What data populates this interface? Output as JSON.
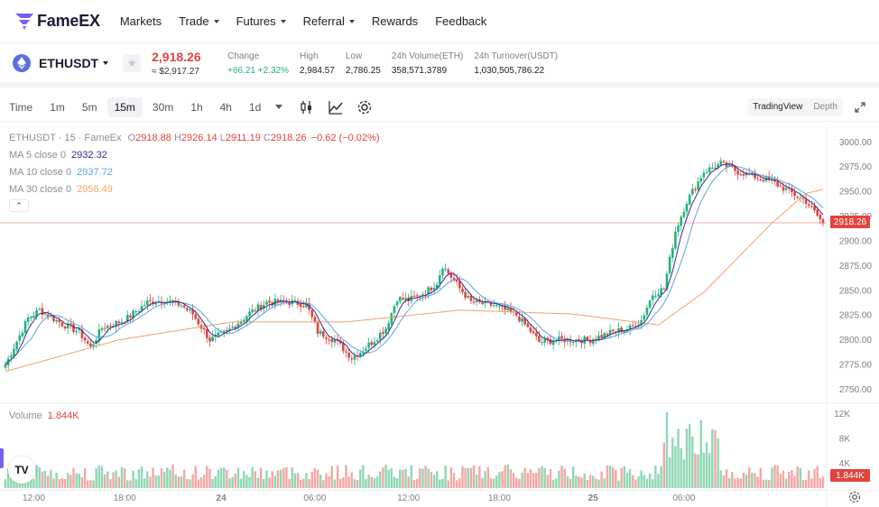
{
  "nav": {
    "brand": "FameEX",
    "items": [
      {
        "label": "Markets",
        "dropdown": false
      },
      {
        "label": "Trade",
        "dropdown": true
      },
      {
        "label": "Futures",
        "dropdown": true
      },
      {
        "label": "Referral",
        "dropdown": true
      },
      {
        "label": "Rewards",
        "dropdown": false
      },
      {
        "label": "Feedback",
        "dropdown": false
      }
    ]
  },
  "ticker": {
    "pair": "ETHUSDT",
    "star_icon": "star-icon",
    "price": "2,918.26",
    "price_usd": "≈ $2,917.27",
    "change_label": "Change",
    "change_value": "+66.21 +2.32%",
    "high_label": "High",
    "high_value": "2,984.57",
    "low_label": "Low",
    "low_value": "2,786.25",
    "volume_label": "24h Volume(ETH)",
    "volume_value": "358,571.3789",
    "turnover_label": "24h Turnover(USDT)",
    "turnover_value": "1,030,505,786.22"
  },
  "toolbar": {
    "timeframes": [
      "Time",
      "1m",
      "5m",
      "15m",
      "30m",
      "1h",
      "4h",
      "1d"
    ],
    "active": "15m",
    "views": [
      "TradingView",
      "Depth"
    ],
    "active_view": "TradingView"
  },
  "legend": {
    "title": "ETHUSDT · 15 · FameEx",
    "o_label": "O",
    "o": "2918.88",
    "h_label": "H",
    "h": "2926.14",
    "l_label": "L",
    "l": "2911.19",
    "c_label": "C",
    "c": "2918.26",
    "chg": "−0.62 (−0.02%)",
    "ma5_label": "MA 5 close 0",
    "ma5": "2932.32",
    "ma10_label": "MA 10 close 0",
    "ma10": "2937.72",
    "ma30_label": "MA 30 close 0",
    "ma30": "2956.49",
    "volume_label": "Volume",
    "volume": "1.844K"
  },
  "colors": {
    "up": "#22b27c",
    "down": "#e0453e",
    "ma5": "#3d2a8c",
    "ma10": "#5aa6e6",
    "ma30": "#f4a06a",
    "vol_up": "#8fd7b4",
    "vol_down": "#f3a8a4"
  },
  "current_price_tag": "2918.26",
  "volume_tag": "1.844K",
  "chart_data": {
    "type": "candlestick",
    "y_ticks": [
      "3000.00",
      "2975.00",
      "2950.00",
      "2925.00",
      "2900.00",
      "2875.00",
      "2850.00",
      "2825.00",
      "2800.00",
      "2775.00",
      "2750.00"
    ],
    "ylim": [
      2745,
      3003
    ],
    "x_ticks": [
      "12:00",
      "18:00",
      "24",
      "06:00",
      "12:00",
      "18:00",
      "25",
      "06:00"
    ],
    "vol_ticks": [
      "12K",
      "8K",
      "4K"
    ],
    "vol_max": 12800,
    "key_closes": [
      [
        0,
        2775
      ],
      [
        8,
        2822
      ],
      [
        12,
        2830
      ],
      [
        20,
        2816
      ],
      [
        26,
        2808
      ],
      [
        30,
        2792
      ],
      [
        34,
        2812
      ],
      [
        42,
        2820
      ],
      [
        50,
        2838
      ],
      [
        56,
        2840
      ],
      [
        62,
        2835
      ],
      [
        66,
        2826
      ],
      [
        72,
        2800
      ],
      [
        78,
        2808
      ],
      [
        86,
        2827
      ],
      [
        92,
        2838
      ],
      [
        100,
        2838
      ],
      [
        106,
        2836
      ],
      [
        110,
        2808
      ],
      [
        116,
        2800
      ],
      [
        122,
        2782
      ],
      [
        126,
        2790
      ],
      [
        130,
        2800
      ],
      [
        134,
        2812
      ],
      [
        138,
        2842
      ],
      [
        142,
        2840
      ],
      [
        148,
        2848
      ],
      [
        152,
        2858
      ],
      [
        154,
        2875
      ],
      [
        160,
        2852
      ],
      [
        164,
        2838
      ],
      [
        172,
        2835
      ],
      [
        180,
        2825
      ],
      [
        184,
        2812
      ],
      [
        188,
        2798
      ],
      [
        196,
        2800
      ],
      [
        206,
        2800
      ],
      [
        214,
        2808
      ],
      [
        220,
        2812
      ],
      [
        224,
        2820
      ],
      [
        228,
        2846
      ],
      [
        232,
        2852
      ],
      [
        236,
        2910
      ],
      [
        240,
        2940
      ],
      [
        246,
        2970
      ],
      [
        252,
        2978
      ],
      [
        258,
        2970
      ],
      [
        264,
        2965
      ],
      [
        270,
        2960
      ],
      [
        276,
        2950
      ],
      [
        282,
        2940
      ],
      [
        288,
        2918
      ]
    ],
    "ma30_points": [
      [
        0,
        2768
      ],
      [
        40,
        2800
      ],
      [
        80,
        2818
      ],
      [
        120,
        2818
      ],
      [
        160,
        2830
      ],
      [
        200,
        2826
      ],
      [
        230,
        2815
      ],
      [
        246,
        2848
      ],
      [
        270,
        2918
      ],
      [
        282,
        2948
      ],
      [
        288,
        2952
      ]
    ]
  }
}
